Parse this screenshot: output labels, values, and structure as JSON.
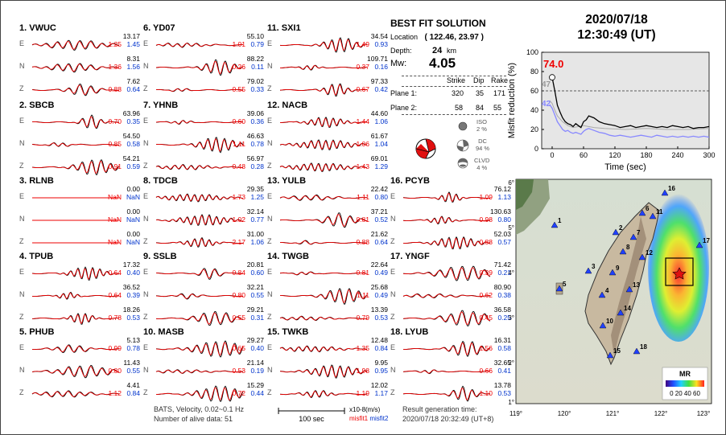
{
  "stations": [
    {
      "title": "1.  VWUC",
      "traces": [
        {
          "comp": "E",
          "amp": "13.17",
          "m1": "1.25",
          "m2": "1.45"
        },
        {
          "comp": "N",
          "amp": "8.31",
          "m1": "1.36",
          "m2": "1.56"
        },
        {
          "comp": "Z",
          "amp": "7.62",
          "m1": "0.88",
          "m2": "0.64"
        }
      ]
    },
    {
      "title": "2.  SBCB",
      "traces": [
        {
          "comp": "E",
          "amp": "63.96",
          "m1": "0.70",
          "m2": "0.35"
        },
        {
          "comp": "N",
          "amp": "54.50",
          "m1": "0.85",
          "m2": "0.58"
        },
        {
          "comp": "Z",
          "amp": "54.21",
          "m1": "0.91",
          "m2": "0.59"
        }
      ]
    },
    {
      "title": "3.  RLNB",
      "traces": [
        {
          "comp": "E",
          "amp": "0.00",
          "m1": "NaN",
          "m2": "NaN"
        },
        {
          "comp": "N",
          "amp": "0.00",
          "m1": "NaN",
          "m2": "NaN"
        },
        {
          "comp": "Z",
          "amp": "0.00",
          "m1": "NaN",
          "m2": "NaN"
        }
      ]
    },
    {
      "title": "4.  TPUB",
      "traces": [
        {
          "comp": "E",
          "amp": "17.32",
          "m1": "0.64",
          "m2": "0.40"
        },
        {
          "comp": "N",
          "amp": "36.52",
          "m1": "0.64",
          "m2": "0.39"
        },
        {
          "comp": "Z",
          "amp": "18.26",
          "m1": "0.78",
          "m2": "0.53"
        }
      ]
    },
    {
      "title": "5.  PHUB",
      "traces": [
        {
          "comp": "E",
          "amp": "5.13",
          "m1": "0.99",
          "m2": "0.78"
        },
        {
          "comp": "N",
          "amp": "11.43",
          "m1": "0.80",
          "m2": "0.55"
        },
        {
          "comp": "Z",
          "amp": "4.41",
          "m1": "1.12",
          "m2": "0.84"
        }
      ]
    },
    {
      "title": "6.  YD07",
      "traces": [
        {
          "comp": "E",
          "amp": "55.10",
          "m1": "1.01",
          "m2": "0.79"
        },
        {
          "comp": "N",
          "amp": "88.22",
          "m1": "0.26",
          "m2": "0.11"
        },
        {
          "comp": "Z",
          "amp": "79.02",
          "m1": "0.55",
          "m2": "0.33"
        }
      ]
    },
    {
      "title": "7.  YHNB",
      "traces": [
        {
          "comp": "E",
          "amp": "39.06",
          "m1": "0.60",
          "m2": "0.36"
        },
        {
          "comp": "N",
          "amp": "46.63",
          "m1": "1.11",
          "m2": "0.78"
        },
        {
          "comp": "Z",
          "amp": "56.97",
          "m1": "0.48",
          "m2": "0.28"
        }
      ]
    },
    {
      "title": "8.  TDCB",
      "traces": [
        {
          "comp": "E",
          "amp": "29.35",
          "m1": "1.73",
          "m2": "1.25"
        },
        {
          "comp": "N",
          "amp": "32.14",
          "m1": "1.02",
          "m2": "0.77"
        },
        {
          "comp": "Z",
          "amp": "31.00",
          "m1": "2.17",
          "m2": "1.06"
        }
      ]
    },
    {
      "title": "9.  SSLB",
      "traces": [
        {
          "comp": "E",
          "amp": "20.81",
          "m1": "0.84",
          "m2": "0.60"
        },
        {
          "comp": "N",
          "amp": "32.21",
          "m1": "0.80",
          "m2": "0.55"
        },
        {
          "comp": "Z",
          "amp": "29.21",
          "m1": "0.55",
          "m2": "0.31"
        }
      ]
    },
    {
      "title": "10. MASB",
      "traces": [
        {
          "comp": "E",
          "amp": "29.27",
          "m1": "0.65",
          "m2": "0.40"
        },
        {
          "comp": "N",
          "amp": "21.14",
          "m1": "0.53",
          "m2": "0.19"
        },
        {
          "comp": "Z",
          "amp": "15.29",
          "m1": "0.72",
          "m2": "0.44"
        }
      ]
    },
    {
      "title": "11. SXI1",
      "traces": [
        {
          "comp": "E",
          "amp": "34.54",
          "m1": "1.49",
          "m2": "0.93"
        },
        {
          "comp": "N",
          "amp": "109.71",
          "m1": "0.37",
          "m2": "0.16"
        },
        {
          "comp": "Z",
          "amp": "97.33",
          "m1": "0.67",
          "m2": "0.42"
        }
      ]
    },
    {
      "title": "12. NACB",
      "traces": [
        {
          "comp": "E",
          "amp": "44.60",
          "m1": "1.44",
          "m2": "1.06"
        },
        {
          "comp": "N",
          "amp": "61.67",
          "m1": "1.06",
          "m2": "1.04"
        },
        {
          "comp": "Z",
          "amp": "69.01",
          "m1": "1.43",
          "m2": "1.29"
        }
      ]
    },
    {
      "title": "13. YULB",
      "traces": [
        {
          "comp": "E",
          "amp": "22.42",
          "m1": "1.11",
          "m2": "0.80"
        },
        {
          "comp": "N",
          "amp": "37.21",
          "m1": "0.81",
          "m2": "0.52"
        },
        {
          "comp": "Z",
          "amp": "21.62",
          "m1": "0.88",
          "m2": "0.64"
        }
      ]
    },
    {
      "title": "14. TWGB",
      "traces": [
        {
          "comp": "E",
          "amp": "22.64",
          "m1": "0.81",
          "m2": "0.49"
        },
        {
          "comp": "N",
          "amp": "25.68",
          "m1": "1.11",
          "m2": "0.49"
        },
        {
          "comp": "Z",
          "amp": "13.39",
          "m1": "0.79",
          "m2": "0.53"
        }
      ]
    },
    {
      "title": "15. TWKB",
      "traces": [
        {
          "comp": "E",
          "amp": "12.48",
          "m1": "1.35",
          "m2": "0.84"
        },
        {
          "comp": "N",
          "amp": "9.95",
          "m1": "1.98",
          "m2": "0.95"
        },
        {
          "comp": "Z",
          "amp": "12.02",
          "m1": "1.19",
          "m2": "1.17"
        }
      ]
    },
    {
      "title": "16. PCYB",
      "traces": [
        {
          "comp": "E",
          "amp": "76.12",
          "m1": "1.09",
          "m2": "1.13"
        },
        {
          "comp": "N",
          "amp": "130.63",
          "m1": "0.98",
          "m2": "0.80"
        },
        {
          "comp": "Z",
          "amp": "52.03",
          "m1": "0.88",
          "m2": "0.57"
        }
      ]
    },
    {
      "title": "17. YNGF",
      "traces": [
        {
          "comp": "E",
          "amp": "71.42",
          "m1": "0.39",
          "m2": "0.21"
        },
        {
          "comp": "N",
          "amp": "80.90",
          "m1": "0.62",
          "m2": "0.38"
        },
        {
          "comp": "Z",
          "amp": "36.58",
          "m1": "0.45",
          "m2": "0.25"
        }
      ]
    },
    {
      "title": "18. LYUB",
      "traces": [
        {
          "comp": "E",
          "amp": "16.31",
          "m1": "1.56",
          "m2": "0.58"
        },
        {
          "comp": "N",
          "amp": "32.65",
          "m1": "0.66",
          "m2": "0.41"
        },
        {
          "comp": "Z",
          "amp": "13.78",
          "m1": "1.10",
          "m2": "0.53"
        }
      ]
    }
  ],
  "solution": {
    "title": "BEST FIT SOLUTION",
    "location_label": "Location",
    "location_value": "( 122.46, 23.97 )",
    "depth_label": "Depth:",
    "depth_value": "24",
    "depth_unit": "km",
    "mw_label": "Mw:",
    "mw_value": "4.05",
    "col_strike": "Strike",
    "col_dip": "Dip",
    "col_rake": "Rake",
    "plane1_label": "Plane 1:",
    "plane1": [
      "320",
      "35",
      "171"
    ],
    "plane2_label": "Plane 2:",
    "plane2": [
      "58",
      "84",
      "55"
    ],
    "iso_label": "ISO",
    "iso_value": "2 %",
    "dc_label": "DC",
    "dc_value": "94 %",
    "clvd_label": "CLVD",
    "clvd_value": "4 %"
  },
  "datetime": {
    "date": "2020/07/18",
    "time": "12:30:49  (UT)"
  },
  "mr_plot": {
    "ylabel": "Misfit reduction (%)",
    "xlabel": "Time (sec)",
    "max_label": "74.0",
    "grey_label": "47",
    "blue_label": "42",
    "xticks": [
      "0",
      "60",
      "120",
      "180",
      "240",
      "300"
    ],
    "yticks": [
      "0",
      "20",
      "40",
      "60",
      "80",
      "100"
    ]
  },
  "chart_data": {
    "type": "line",
    "xlabel": "Time (sec)",
    "ylabel": "Misfit reduction (%)",
    "xlim": [
      -20,
      300
    ],
    "ylim": [
      0,
      100
    ],
    "reference_line": 60,
    "series": [
      {
        "color": "#000000",
        "x": [
          -5,
          0,
          5,
          10,
          15,
          20,
          25,
          30,
          35,
          40,
          45,
          50,
          55,
          60,
          65,
          70,
          80,
          90,
          100,
          110,
          120,
          130,
          140,
          150,
          160,
          170,
          180,
          190,
          200,
          210,
          220,
          230,
          240,
          250,
          260,
          270,
          280,
          290,
          300
        ],
        "y": [
          72,
          74,
          60,
          45,
          38,
          32,
          28,
          26,
          25,
          23,
          26,
          24,
          22,
          28,
          30,
          34,
          32,
          28,
          26,
          25,
          24,
          22,
          23,
          24,
          22,
          23,
          24,
          23,
          22,
          23,
          22,
          24,
          23,
          22,
          23,
          21,
          22,
          22,
          23
        ]
      },
      {
        "color": "#8888ff",
        "x": [
          -5,
          0,
          5,
          10,
          15,
          20,
          25,
          30,
          35,
          40,
          45,
          50,
          55,
          60,
          65,
          70,
          80,
          90,
          100,
          110,
          120,
          130,
          140,
          150,
          160,
          170,
          180,
          190,
          200,
          210,
          220,
          230,
          240,
          250,
          260,
          270,
          280,
          290,
          300
        ],
        "y": [
          46,
          42,
          35,
          28,
          24,
          20,
          18,
          19,
          17,
          16,
          17,
          16,
          15,
          18,
          20,
          21,
          19,
          17,
          16,
          14,
          13,
          14,
          13,
          12,
          13,
          14,
          13,
          12,
          14,
          13,
          12,
          13,
          12,
          13,
          12,
          13,
          12,
          13,
          12
        ]
      },
      {
        "color": "#aaaaaa",
        "x": [
          -5,
          0,
          5,
          10,
          20,
          30,
          40,
          60,
          80,
          100,
          140,
          180,
          220,
          260,
          300
        ],
        "y": [
          50,
          47,
          40,
          34,
          28,
          24,
          22,
          24,
          22,
          21,
          20,
          21,
          20,
          20,
          21
        ]
      }
    ]
  },
  "map": {
    "yticks": [
      "26°",
      "25°",
      "24°",
      "23°",
      "22°",
      "21°"
    ],
    "xticks": [
      "119°",
      "120°",
      "121°",
      "122°",
      "123°"
    ],
    "legend_title": "MR",
    "legend_ticks": "0  20 40 60",
    "station_labels": [
      "1",
      "2",
      "3",
      "4",
      "5",
      "6",
      "7",
      "8",
      "9",
      "10",
      "11",
      "12",
      "13",
      "14",
      "15",
      "16",
      "17",
      "18"
    ]
  },
  "footer": {
    "line1": "BATS, Velocity, 0.02~0.1 Hz",
    "line2": "Number of alive data: 51",
    "scale_label": "100 sec",
    "unit": "x10-8(m/s)",
    "misfit1": "misfit1",
    "misfit2": "misfit2",
    "gen_label": "Result generation time:",
    "gen_value": "2020/07/18 20:32:49 (UT+8)"
  }
}
